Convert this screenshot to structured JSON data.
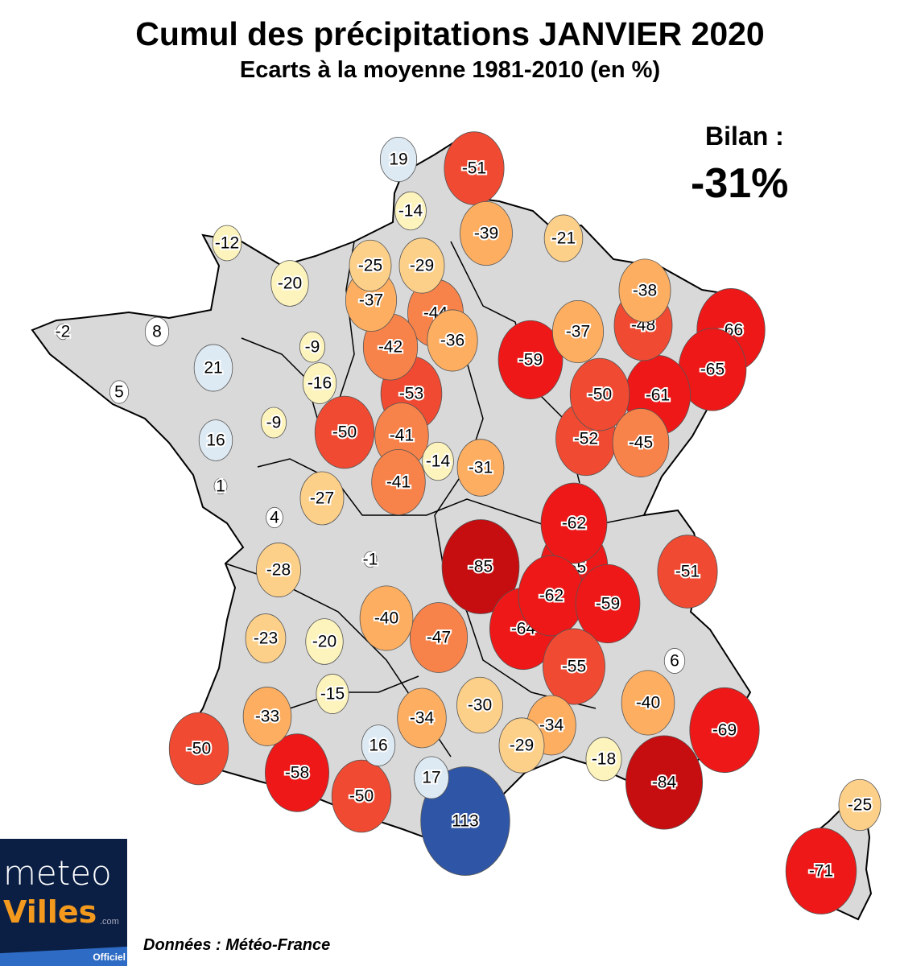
{
  "title": "Cumul des précipitations JANVIER 2020",
  "subtitle": "Ecarts à la moyenne 1981-2010 (en %)",
  "bilan": {
    "label": "Bilan :",
    "value": "-31%"
  },
  "source": "Données : Météo-France",
  "logo": {
    "line1": "meteo",
    "line2": "Villes",
    "suffix": ".com",
    "tag": "Officiel"
  },
  "colors": {
    "land": "#d9d9d9",
    "strong_positive": "#2f56a6",
    "positive": "#deeaf3",
    "neutral": "#ffffff",
    "weak_negative": "#fdf4bd",
    "moderate_negative": "#fdd08a",
    "negative": "#fdae61",
    "strong_negative": "#f7834a",
    "very_negative": "#f04a32",
    "severe_negative": "#ee1818",
    "extreme_negative": "#c60d10",
    "logo_bg": "#0b1f45",
    "logo_accent": "#f39a1e"
  },
  "stations": [
    19,
    -51,
    -14,
    -39,
    -21,
    -12,
    -25,
    -29,
    -20,
    -37,
    -38,
    -44,
    -48,
    -66,
    -2,
    8,
    -37,
    -36,
    -9,
    -42,
    -59,
    -65,
    21,
    -16,
    5,
    -53,
    -50,
    -61,
    -9,
    -50,
    -41,
    -52,
    -45,
    16,
    -14,
    -31,
    1,
    -41,
    -27,
    4,
    -62,
    -85,
    -1,
    -28,
    -65,
    -51,
    -62,
    -59,
    -64,
    -40,
    -47,
    -23,
    -20,
    -55,
    6,
    -15,
    -40,
    -33,
    -34,
    -30,
    -34,
    -69,
    -50,
    -29,
    16,
    -18,
    -58,
    -84,
    17,
    -50,
    113,
    -25,
    -71
  ]
}
